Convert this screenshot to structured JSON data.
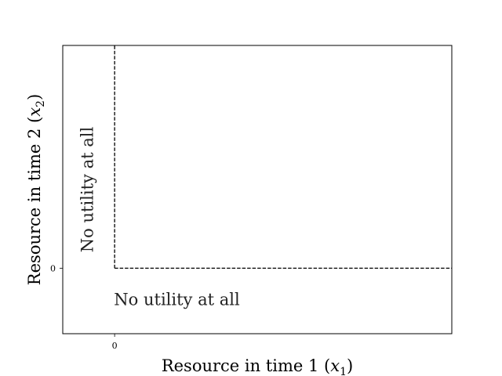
{
  "chart_data": {
    "type": "line",
    "title": "",
    "xlabel": "Resource in time 1",
    "xlabel_sym": "x",
    "xlabel_sub": "1",
    "ylabel": "Resource in time 2",
    "ylabel_sym": "x",
    "ylabel_sub": "2",
    "xlim": [
      -1,
      6.5
    ],
    "ylim": [
      -1,
      3.4
    ],
    "xticks": [
      0
    ],
    "xtick_labels": [
      "0"
    ],
    "yticks": [
      0
    ],
    "ytick_labels": [
      "0"
    ],
    "grid": false,
    "series": [
      {
        "style": "dashed",
        "color": "#000000",
        "x": [
          0,
          0
        ],
        "y": [
          0,
          3.4
        ]
      },
      {
        "style": "dashed",
        "color": "#000000",
        "x": [
          0,
          6.5
        ],
        "y": [
          0,
          0
        ]
      }
    ],
    "annotations": [
      {
        "text": "No utility at all",
        "x": -0.5,
        "y": 1.2,
        "rotation": 90
      },
      {
        "text": "No utility at all",
        "x": 1.2,
        "y": -0.5,
        "rotation": 0
      }
    ]
  }
}
